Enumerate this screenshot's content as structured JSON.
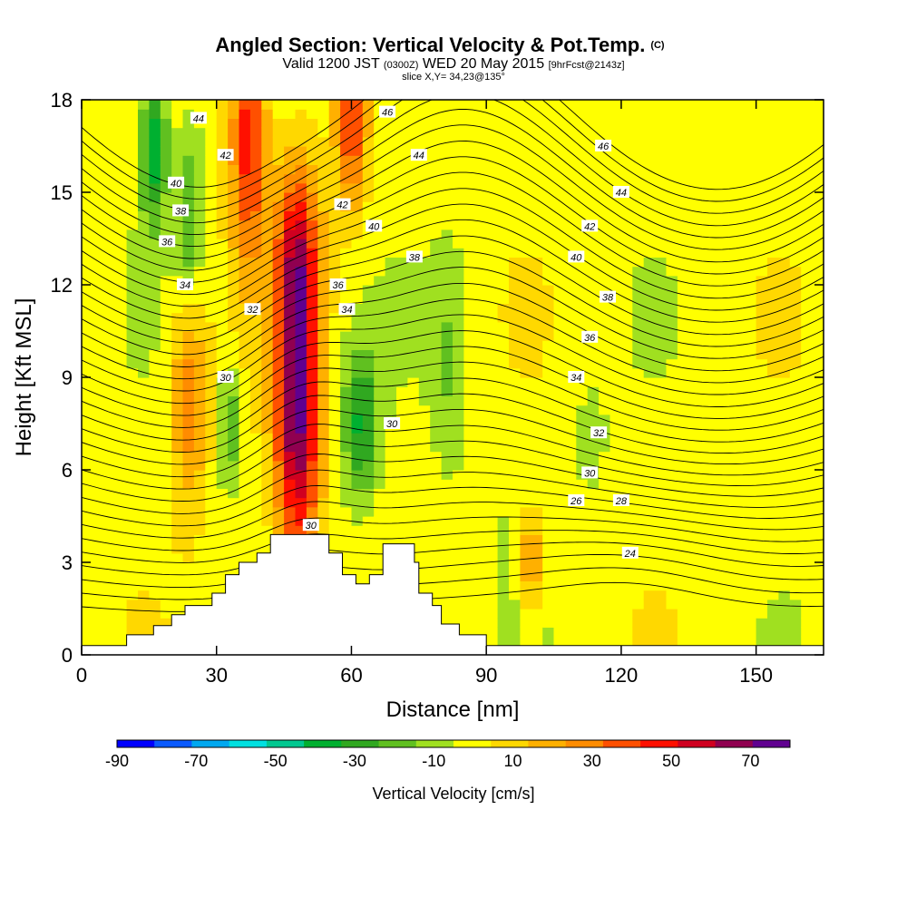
{
  "chart_data": {
    "type": "heatmap",
    "title": "Angled Section: Vertical Velocity & Pot.Temp.",
    "title_unit": "(C)",
    "subtitle_parts": [
      "Valid 1200 JST",
      "(0300Z)",
      "WED 20 May 2015",
      "[9hrFcst@2143z]"
    ],
    "subtitle2": "slice X,Y= 34,23@135°",
    "xlabel": "Distance [nm]",
    "ylabel": "Height [Kft MSL]",
    "xlim": [
      0,
      165
    ],
    "ylim": [
      0,
      18
    ],
    "xticks": [
      0,
      30,
      60,
      90,
      120,
      150
    ],
    "yticks": [
      0,
      3,
      6,
      9,
      12,
      15,
      18
    ],
    "colorbar": {
      "label": "Vertical Velocity [cm/s]",
      "ticks": [
        -90,
        -70,
        -50,
        -30,
        -10,
        10,
        30,
        50,
        70
      ],
      "min": -90,
      "max": 80,
      "step": 10,
      "colors": [
        "#0000ff",
        "#0a5aff",
        "#00a8f0",
        "#00e0e0",
        "#00c890",
        "#00b030",
        "#30a820",
        "#60c020",
        "#a0e020",
        "#ffff00",
        "#ffd800",
        "#ffb000",
        "#ff8c00",
        "#ff5000",
        "#ff1000",
        "#d00020",
        "#900050",
        "#600090"
      ]
    },
    "terrain": [
      [
        0,
        0.3
      ],
      [
        10,
        0.3
      ],
      [
        10,
        0.65
      ],
      [
        16,
        0.65
      ],
      [
        16,
        0.95
      ],
      [
        20,
        0.95
      ],
      [
        20,
        1.3
      ],
      [
        23,
        1.3
      ],
      [
        23,
        1.6
      ],
      [
        29,
        1.6
      ],
      [
        29,
        2.0
      ],
      [
        32,
        2.0
      ],
      [
        32,
        2.6
      ],
      [
        35,
        2.6
      ],
      [
        35,
        3.0
      ],
      [
        39,
        3.0
      ],
      [
        39,
        3.3
      ],
      [
        42,
        3.3
      ],
      [
        42,
        3.9
      ],
      [
        55,
        3.9
      ],
      [
        55,
        3.3
      ],
      [
        58,
        3.3
      ],
      [
        58,
        2.6
      ],
      [
        61,
        2.6
      ],
      [
        61,
        2.3
      ],
      [
        64,
        2.3
      ],
      [
        64,
        2.6
      ],
      [
        67,
        2.6
      ],
      [
        67,
        3.6
      ],
      [
        74,
        3.6
      ],
      [
        74,
        3.0
      ],
      [
        75,
        3.0
      ],
      [
        75,
        2.0
      ],
      [
        78,
        2.0
      ],
      [
        78,
        1.6
      ],
      [
        80,
        1.6
      ],
      [
        80,
        1.0
      ],
      [
        84,
        1.0
      ],
      [
        84,
        0.65
      ],
      [
        90,
        0.65
      ],
      [
        90,
        0.3
      ],
      [
        165,
        0.3
      ]
    ],
    "updrafts": [
      {
        "x": 48,
        "y": 8,
        "sx": 5,
        "sy": 5.5,
        "amp": 75
      },
      {
        "x": 37,
        "y": 17,
        "sx": 4,
        "sy": 4.5,
        "amp": 50
      },
      {
        "x": 60,
        "y": 17.5,
        "sx": 3.5,
        "sy": 3,
        "amp": 50
      },
      {
        "x": 48,
        "y": 13,
        "sx": 5,
        "sy": 3,
        "amp": 35
      },
      {
        "x": 24,
        "y": 8.5,
        "sx": 4,
        "sy": 3.5,
        "amp": 35
      },
      {
        "x": 100,
        "y": 3,
        "sx": 1.5,
        "sy": 1.6,
        "amp": 45
      }
    ],
    "downdrafts": [
      {
        "x": 16,
        "y": 16.5,
        "sx": 3,
        "sy": 2.5,
        "amp": -40
      },
      {
        "x": 24,
        "y": 14,
        "sx": 3,
        "sy": 3,
        "amp": -25
      },
      {
        "x": 62,
        "y": 7.5,
        "sx": 4,
        "sy": 2.5,
        "amp": -35
      },
      {
        "x": 33,
        "y": 7.5,
        "sx": 2.5,
        "sy": 2,
        "amp": -25
      },
      {
        "x": 82,
        "y": 9.5,
        "sx": 4,
        "sy": 3.5,
        "amp": -15
      },
      {
        "x": 113,
        "y": 7,
        "sx": 3,
        "sy": 1.5,
        "amp": -15
      },
      {
        "x": 93,
        "y": 3,
        "sx": 1.2,
        "sy": 1.5,
        "amp": -12
      }
    ],
    "isentropes": [
      {
        "level": 24,
        "labels": [
          {
            "x": 122,
            "y": 3.3,
            "text": "24"
          }
        ]
      },
      {
        "level": 26,
        "labels": [
          {
            "x": 110,
            "y": 5.0,
            "text": "26"
          }
        ]
      },
      {
        "level": 28,
        "labels": [
          {
            "x": 120,
            "y": 5.0,
            "text": "28"
          }
        ]
      },
      {
        "level": 30,
        "labels": [
          {
            "x": 32,
            "y": 9.0,
            "text": "30"
          },
          {
            "x": 69,
            "y": 7.5,
            "text": "30"
          },
          {
            "x": 51,
            "y": 4.2,
            "text": "30"
          },
          {
            "x": 113,
            "y": 5.9,
            "text": "30"
          }
        ]
      },
      {
        "level": 32,
        "labels": [
          {
            "x": 38,
            "y": 11.2,
            "text": "32"
          },
          {
            "x": 115,
            "y": 7.2,
            "text": "32"
          }
        ]
      },
      {
        "level": 34,
        "labels": [
          {
            "x": 23,
            "y": 12.0,
            "text": "34"
          },
          {
            "x": 59,
            "y": 11.2,
            "text": "34"
          },
          {
            "x": 110,
            "y": 9.0,
            "text": "34"
          }
        ]
      },
      {
        "level": 36,
        "labels": [
          {
            "x": 19,
            "y": 13.4,
            "text": "36"
          },
          {
            "x": 57,
            "y": 12.0,
            "text": "36"
          },
          {
            "x": 113,
            "y": 10.3,
            "text": "36"
          }
        ]
      },
      {
        "level": 38,
        "labels": [
          {
            "x": 22,
            "y": 14.4,
            "text": "38"
          },
          {
            "x": 74,
            "y": 12.9,
            "text": "38"
          },
          {
            "x": 117,
            "y": 11.6,
            "text": "38"
          }
        ]
      },
      {
        "level": 40,
        "labels": [
          {
            "x": 21,
            "y": 15.3,
            "text": "40"
          },
          {
            "x": 65,
            "y": 13.9,
            "text": "40"
          },
          {
            "x": 110,
            "y": 12.9,
            "text": "40"
          }
        ]
      },
      {
        "level": 42,
        "labels": [
          {
            "x": 32,
            "y": 16.2,
            "text": "42"
          },
          {
            "x": 58,
            "y": 14.6,
            "text": "42"
          },
          {
            "x": 113,
            "y": 13.9,
            "text": "42"
          }
        ]
      },
      {
        "level": 44,
        "labels": [
          {
            "x": 26,
            "y": 17.4,
            "text": "44"
          },
          {
            "x": 75,
            "y": 16.2,
            "text": "44"
          },
          {
            "x": 120,
            "y": 15.0,
            "text": "44"
          }
        ]
      },
      {
        "level": 46,
        "labels": [
          {
            "x": 68,
            "y": 17.6,
            "text": "46"
          },
          {
            "x": 116,
            "y": 16.5,
            "text": "46"
          }
        ]
      }
    ]
  }
}
